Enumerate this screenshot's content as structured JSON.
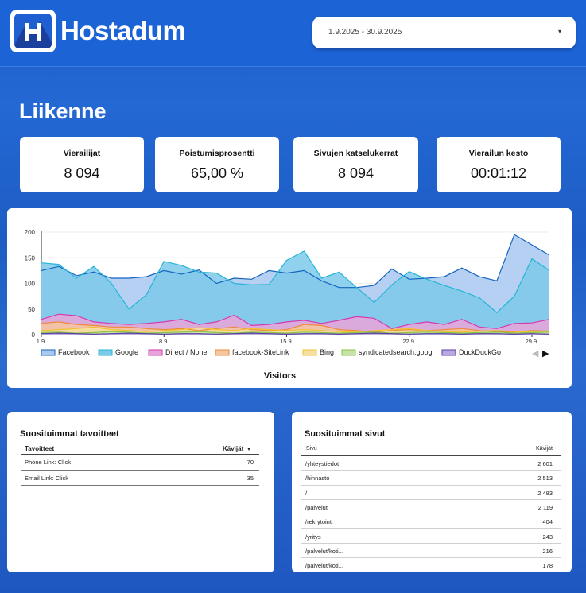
{
  "header": {
    "brand": "Hostadum",
    "date_range": "1.9.2025 - 30.9.2025",
    "caret": "▾"
  },
  "section_title": "Liikenne",
  "kpis": [
    {
      "label": "Vierailijat",
      "value": "8 094"
    },
    {
      "label": "Poistumisprosentti",
      "value": "65,00 %"
    },
    {
      "label": "Sivujen katselukerrat",
      "value": "8 094"
    },
    {
      "label": "Vierailun kesto",
      "value": "00:01:12"
    }
  ],
  "chart_data": {
    "type": "area",
    "xlabel": "Visitors",
    "ylabel": "",
    "ylim": [
      0,
      200
    ],
    "yticks": [
      "0",
      "50",
      "100",
      "150",
      "200"
    ],
    "x_tick_labels": [
      {
        "day": 1,
        "label": "1.9."
      },
      {
        "day": 8,
        "label": "8.9."
      },
      {
        "day": 15,
        "label": "15.9."
      },
      {
        "day": 22,
        "label": "22.9."
      },
      {
        "day": 29,
        "label": "29.9."
      }
    ],
    "x": [
      1,
      2,
      3,
      4,
      5,
      6,
      7,
      8,
      9,
      10,
      11,
      12,
      13,
      14,
      15,
      16,
      17,
      18,
      19,
      20,
      21,
      22,
      23,
      24,
      25,
      26,
      27,
      28,
      29,
      30
    ],
    "series": [
      {
        "name": "Facebook",
        "color": "#1565c0",
        "fill": "#a8c8f0",
        "values": [
          125,
          133,
          115,
          122,
          110,
          110,
          113,
          125,
          118,
          126,
          100,
          110,
          108,
          125,
          120,
          125,
          105,
          92,
          92,
          96,
          128,
          108,
          110,
          113,
          130,
          113,
          105,
          195,
          175,
          155
        ]
      },
      {
        "name": "Google",
        "color": "#26b5d6",
        "fill": "#7cc9ea",
        "values": [
          140,
          137,
          110,
          133,
          100,
          50,
          78,
          143,
          135,
          122,
          120,
          100,
          97,
          98,
          145,
          163,
          110,
          122,
          92,
          63,
          97,
          123,
          108,
          96,
          85,
          72,
          43,
          75,
          148,
          125
        ]
      },
      {
        "name": "Direct / None",
        "color": "#d63ab0",
        "fill": "#e7a4d8",
        "values": [
          30,
          40,
          37,
          25,
          22,
          20,
          22,
          25,
          30,
          20,
          25,
          38,
          18,
          20,
          25,
          28,
          22,
          28,
          35,
          32,
          12,
          20,
          25,
          20,
          30,
          15,
          12,
          22,
          23,
          30
        ]
      },
      {
        "name": "facebook-SiteLink",
        "color": "#f08a3a",
        "fill": "#f5c7a0",
        "values": [
          22,
          25,
          20,
          18,
          15,
          15,
          12,
          10,
          12,
          8,
          12,
          15,
          10,
          8,
          10,
          20,
          18,
          10,
          8,
          5,
          8,
          10,
          8,
          10,
          12,
          8,
          6,
          5,
          8,
          7
        ]
      },
      {
        "name": "Bing",
        "color": "#f2c230",
        "fill": "#f7e1a2",
        "values": [
          8,
          10,
          12,
          15,
          10,
          8,
          6,
          8,
          10,
          14,
          10,
          8,
          12,
          10,
          8,
          10,
          8,
          6,
          5,
          8,
          10,
          12,
          8,
          6,
          5,
          7,
          8,
          6,
          5,
          8
        ]
      },
      {
        "name": "syndicatedsearch.goog",
        "color": "#8bc34a",
        "fill": "#c7e3a7",
        "values": [
          4,
          5,
          3,
          4,
          6,
          5,
          3,
          4,
          5,
          6,
          4,
          3,
          5,
          4,
          3,
          5,
          4,
          3,
          4,
          5,
          3,
          4,
          5,
          4,
          3,
          4,
          5,
          3,
          4,
          5
        ]
      },
      {
        "name": "DuckDuckGo",
        "color": "#5b3fa8",
        "fill": "#b8a8e0",
        "values": [
          2,
          3,
          2,
          1,
          2,
          3,
          2,
          1,
          2,
          2,
          1,
          2,
          3,
          2,
          1,
          2,
          2,
          1,
          2,
          3,
          2,
          1,
          2,
          2,
          1,
          2,
          2,
          1,
          2,
          1
        ]
      }
    ]
  },
  "goals": {
    "title": "Suosituimmat tavoitteet",
    "col_name": "Tavoitteet",
    "col_value": "Kävijät",
    "sort_icon": "▾",
    "rows": [
      {
        "name": "Phone Link: Click",
        "value": "70"
      },
      {
        "name": "Email Link: Click",
        "value": "35"
      }
    ]
  },
  "pages": {
    "title": "Suosituimmat sivut",
    "col_name": "Sivu",
    "col_value": "Kävijät",
    "rows": [
      {
        "name": "/yhteystiedot",
        "value": "2 601"
      },
      {
        "name": "/hinnasto",
        "value": "2 513"
      },
      {
        "name": "/",
        "value": "2 483"
      },
      {
        "name": "/palvelut",
        "value": "2 119"
      },
      {
        "name": "/rekrytointi",
        "value": "404"
      },
      {
        "name": "/yritys",
        "value": "243"
      },
      {
        "name": "/palvelut/koti...",
        "value": "216"
      },
      {
        "name": "/palvelut/koti...",
        "value": "178"
      }
    ]
  },
  "legend_nav": {
    "prev": "◀",
    "next": "▶"
  }
}
